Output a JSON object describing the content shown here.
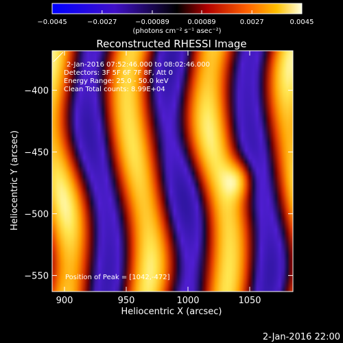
{
  "chart_data": {
    "type": "heatmap",
    "title": "Reconstructed RHESSI Image",
    "xlabel": "Heliocentric X (arcsec)",
    "ylabel": "Heliocentric Y (arcsec)",
    "xlim": [
      890,
      1085
    ],
    "ylim": [
      -563,
      -368
    ],
    "x_ticks": [
      900,
      950,
      1000,
      1050
    ],
    "y_ticks": [
      -550,
      -500,
      -450,
      -400
    ],
    "x_tick_labels": [
      "900",
      "950",
      "1000",
      "1050"
    ],
    "y_tick_labels": [
      "−550",
      "−500",
      "−450",
      "−400"
    ],
    "colorbar": {
      "min": -0.0045,
      "max": 0.0045,
      "tick_labels": [
        "−0.0045",
        "−0.0027",
        "−0.00089",
        "0.00089",
        "0.0027",
        "0.0045"
      ],
      "unit_label": "(photons cm⁻² s⁻¹ asec⁻²)"
    },
    "annotations": [
      "2-Jan-2016 07:52:46.000 to 08:02:46.000",
      "Detectors: 3F 5F 6F 7F 8F, Att 0",
      "Energy Range: 25.0 - 50.0 keV",
      "Clean     Total counts: 8.99E+04"
    ],
    "position_label": "Position of Peak = [1042,-472]",
    "peak": [
      1042,
      -472
    ],
    "footer_date": "2-Jan-2016 22:00"
  }
}
